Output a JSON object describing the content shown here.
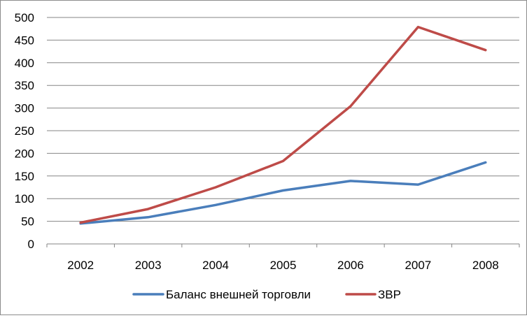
{
  "chart_data": {
    "type": "line",
    "title": "",
    "xlabel": "",
    "ylabel": "",
    "categories": [
      "2002",
      "2003",
      "2004",
      "2005",
      "2006",
      "2007",
      "2008"
    ],
    "ylim": [
      0,
      500
    ],
    "yticks": [
      0,
      50,
      100,
      150,
      200,
      250,
      300,
      350,
      400,
      450,
      500
    ],
    "grid": "horizontal",
    "legend": "bottom",
    "series": [
      {
        "name": "Баланс внешней торговли",
        "color": "#4a7ebb",
        "values": [
          45,
          59,
          86,
          118,
          139,
          131,
          180
        ]
      },
      {
        "name": "ЗВР",
        "color": "#be4b48",
        "values": [
          47,
          77,
          125,
          183,
          304,
          479,
          428
        ]
      }
    ]
  }
}
